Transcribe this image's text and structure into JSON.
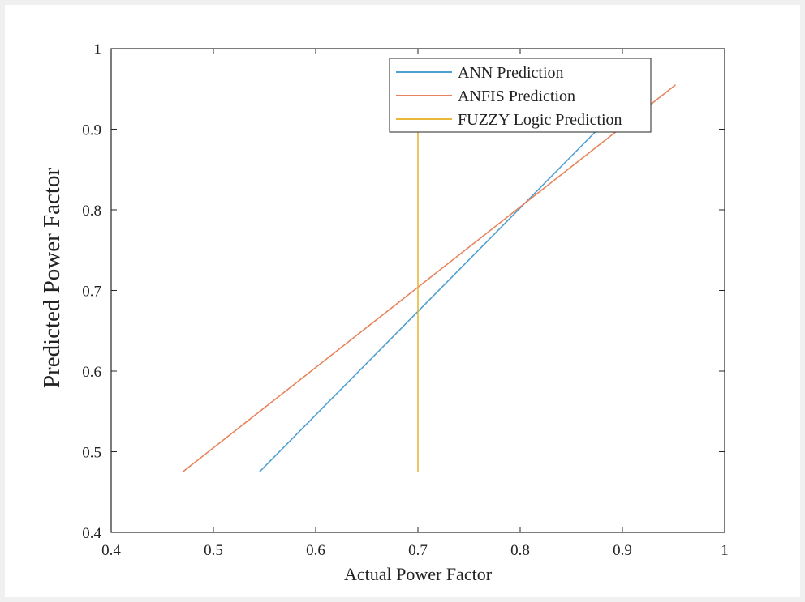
{
  "chart_data": {
    "type": "line",
    "title": "",
    "xlabel": "Actual Power Factor",
    "ylabel": "Predicted Power Factor",
    "xlim": [
      0.4,
      1.0
    ],
    "ylim": [
      0.4,
      1.0
    ],
    "xticks": [
      0.4,
      0.5,
      0.6,
      0.7,
      0.8,
      0.9,
      1.0
    ],
    "yticks": [
      0.4,
      0.5,
      0.6,
      0.7,
      0.8,
      0.9,
      1.0
    ],
    "xtick_labels": [
      "0.4",
      "0.5",
      "0.6",
      "0.7",
      "0.8",
      "0.9",
      "1"
    ],
    "ytick_labels": [
      "0.4",
      "0.5",
      "0.6",
      "0.7",
      "0.8",
      "0.9",
      "1"
    ],
    "grid": false,
    "legend_position": "top-right",
    "series": [
      {
        "name": "ANN Prediction",
        "color": "#4f9fd0",
        "x": [
          0.545,
          0.88
        ],
        "y": [
          0.475,
          0.905
        ]
      },
      {
        "name": "ANFIS Prediction",
        "color": "#e8825a",
        "x": [
          0.47,
          0.952
        ],
        "y": [
          0.475,
          0.955
        ]
      },
      {
        "name": "FUZZY Logic Prediction",
        "color": "#e9b838",
        "x": [
          0.7,
          0.7
        ],
        "y": [
          0.475,
          0.905
        ]
      }
    ]
  }
}
